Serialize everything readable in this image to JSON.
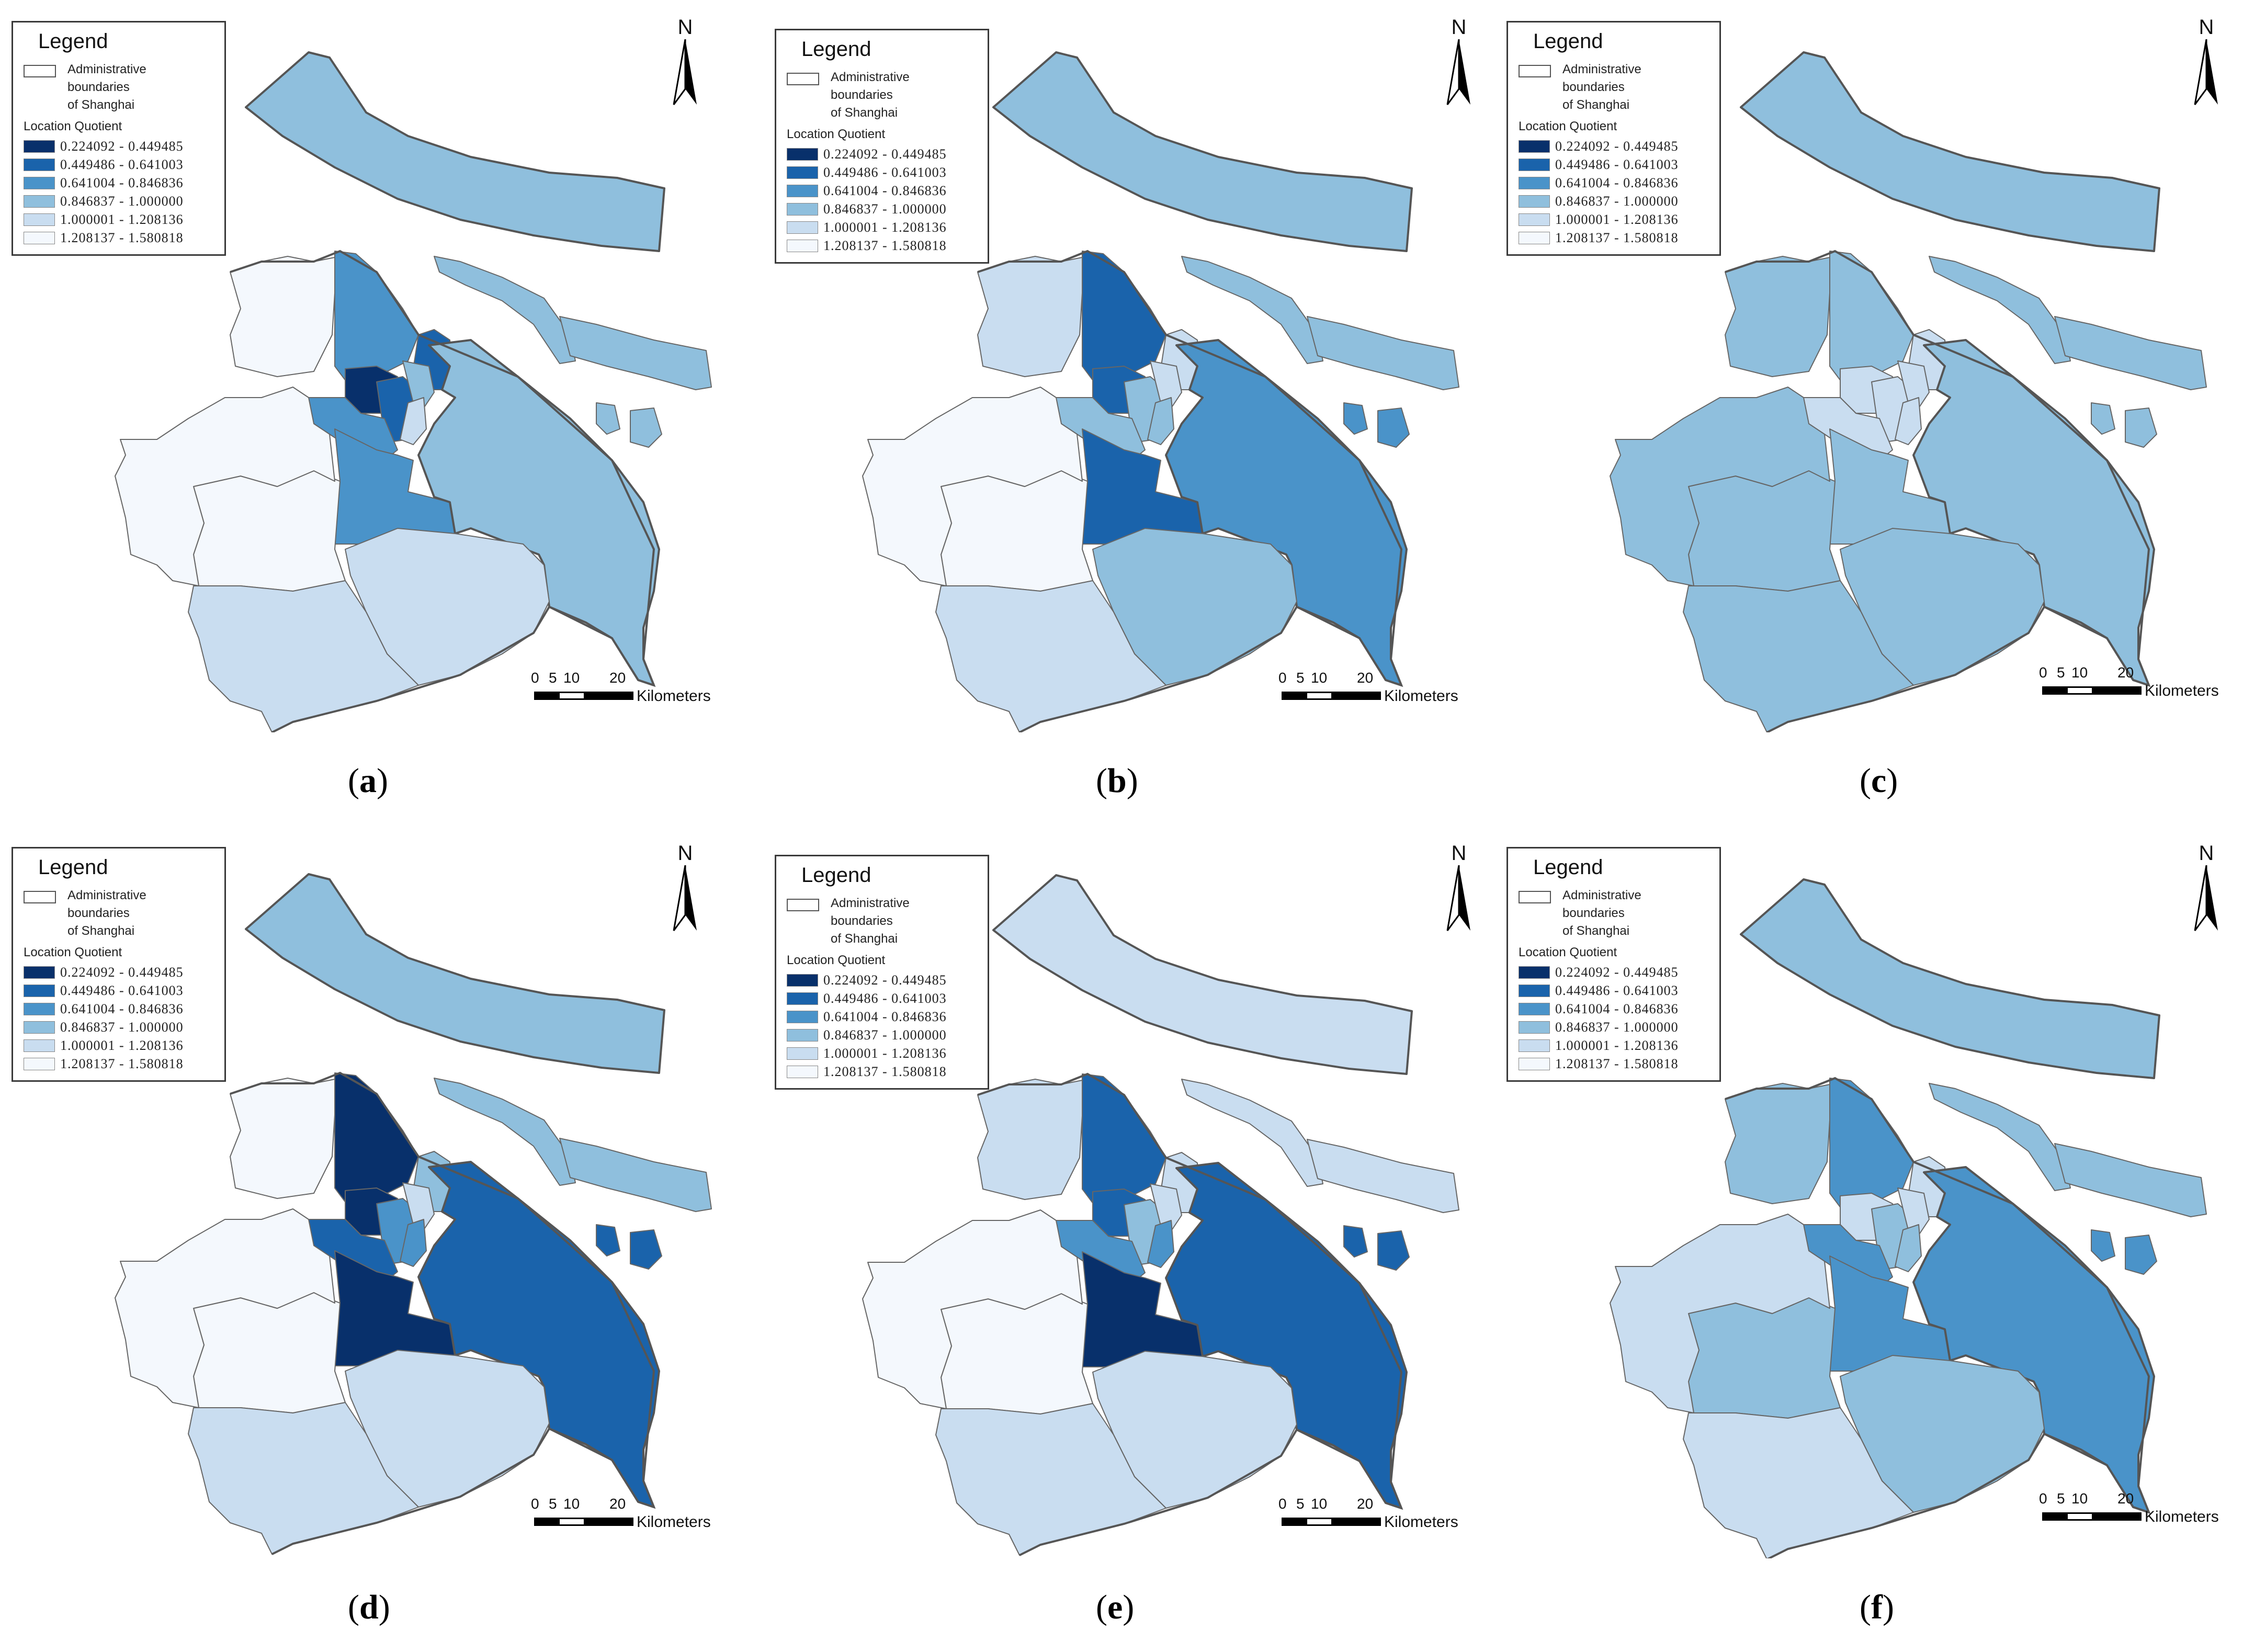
{
  "legend": {
    "title": "Legend",
    "admin_label": "Administrative\nboundaries\nof Shanghai",
    "lq_heading": "Location Quotient",
    "classes": [
      {
        "label": "0.224092 - 0.449485",
        "color": "#08306b"
      },
      {
        "label": "0.449486 - 0.641003",
        "color": "#1a63ab"
      },
      {
        "label": "0.641004 - 0.846836",
        "color": "#4a93c9"
      },
      {
        "label": "0.846837 - 1.000000",
        "color": "#8fbfdd"
      },
      {
        "label": "1.000001 - 1.208136",
        "color": "#c9ddf0"
      },
      {
        "label": "1.208137 - 1.580818",
        "color": "#f4f8fd"
      }
    ]
  },
  "north_label": "N",
  "scale": {
    "ticks": [
      "0",
      "5",
      "10",
      "20"
    ],
    "unit": "Kilometers"
  },
  "panels": [
    {
      "id": "a",
      "caption": "a",
      "classes": {
        "chongming": 3,
        "changxing": 3,
        "hengsha": 3,
        "pudong": 3,
        "fengxian": 4,
        "jinshan": 4,
        "songjiang": 5,
        "qingpu": 5,
        "jiading": 5,
        "baoshan": 2,
        "minhang": 2,
        "central_a": 0,
        "central_b": 1,
        "central_c": 3,
        "central_d": 4,
        "yangpu": 1,
        "xuhui": 2
      }
    },
    {
      "id": "b",
      "caption": "b",
      "classes": {
        "chongming": 3,
        "changxing": 3,
        "hengsha": 3,
        "pudong": 2,
        "fengxian": 3,
        "jinshan": 4,
        "songjiang": 5,
        "qingpu": 5,
        "jiading": 4,
        "baoshan": 1,
        "minhang": 1,
        "central_a": 1,
        "central_b": 3,
        "central_c": 4,
        "central_d": 3,
        "yangpu": 4,
        "xuhui": 3
      }
    },
    {
      "id": "c",
      "caption": "c",
      "classes": {
        "chongming": 3,
        "changxing": 3,
        "hengsha": 3,
        "pudong": 3,
        "fengxian": 3,
        "jinshan": 3,
        "songjiang": 3,
        "qingpu": 3,
        "jiading": 3,
        "baoshan": 3,
        "minhang": 3,
        "central_a": 4,
        "central_b": 4,
        "central_c": 4,
        "central_d": 4,
        "yangpu": 4,
        "xuhui": 4
      }
    },
    {
      "id": "d",
      "caption": "d",
      "classes": {
        "chongming": 3,
        "changxing": 3,
        "hengsha": 3,
        "pudong": 1,
        "fengxian": 4,
        "jinshan": 4,
        "songjiang": 5,
        "qingpu": 5,
        "jiading": 5,
        "baoshan": 0,
        "minhang": 0,
        "central_a": 0,
        "central_b": 2,
        "central_c": 4,
        "central_d": 2,
        "yangpu": 3,
        "xuhui": 1
      }
    },
    {
      "id": "e",
      "caption": "e",
      "classes": {
        "chongming": 4,
        "changxing": 4,
        "hengsha": 4,
        "pudong": 1,
        "fengxian": 4,
        "jinshan": 4,
        "songjiang": 5,
        "qingpu": 5,
        "jiading": 4,
        "baoshan": 1,
        "minhang": 0,
        "central_a": 1,
        "central_b": 3,
        "central_c": 4,
        "central_d": 2,
        "yangpu": 4,
        "xuhui": 2
      }
    },
    {
      "id": "f",
      "caption": "f",
      "classes": {
        "chongming": 3,
        "changxing": 3,
        "hengsha": 3,
        "pudong": 2,
        "fengxian": 3,
        "jinshan": 4,
        "songjiang": 3,
        "qingpu": 4,
        "jiading": 3,
        "baoshan": 2,
        "minhang": 2,
        "central_a": 4,
        "central_b": 3,
        "central_c": 4,
        "central_d": 3,
        "yangpu": 4,
        "xuhui": 2
      }
    }
  ]
}
